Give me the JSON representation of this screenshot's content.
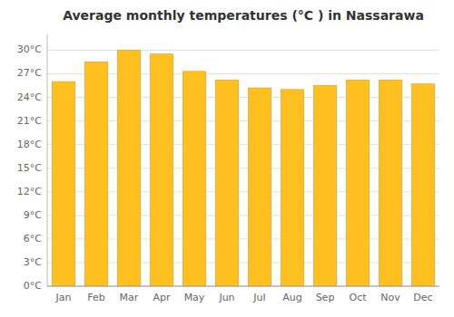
{
  "chart_data": {
    "type": "bar",
    "title": "Average monthly temperatures (°C ) in Nassarawa",
    "categories": [
      "Jan",
      "Feb",
      "Mar",
      "Apr",
      "May",
      "Jun",
      "Jul",
      "Aug",
      "Sep",
      "Oct",
      "Nov",
      "Dec"
    ],
    "values": [
      26.0,
      28.5,
      30.0,
      29.5,
      27.3,
      26.2,
      25.2,
      25.0,
      25.5,
      26.2,
      26.2,
      25.7
    ],
    "color": "#FFC020",
    "ylim": [
      0,
      32
    ],
    "yticks": [
      {
        "value": 0,
        "label": "0°C"
      },
      {
        "value": 3,
        "label": "3°C"
      },
      {
        "value": 6,
        "label": "6°C"
      },
      {
        "value": 9,
        "label": "9°C"
      },
      {
        "value": 12,
        "label": "12°C"
      },
      {
        "value": 15,
        "label": "15°C"
      },
      {
        "value": 18,
        "label": "18°C"
      },
      {
        "value": 21,
        "label": "21°C"
      },
      {
        "value": 24,
        "label": "24°C"
      },
      {
        "value": 27,
        "label": "27°C"
      },
      {
        "value": 30,
        "label": "30°C"
      }
    ],
    "grid": true
  }
}
